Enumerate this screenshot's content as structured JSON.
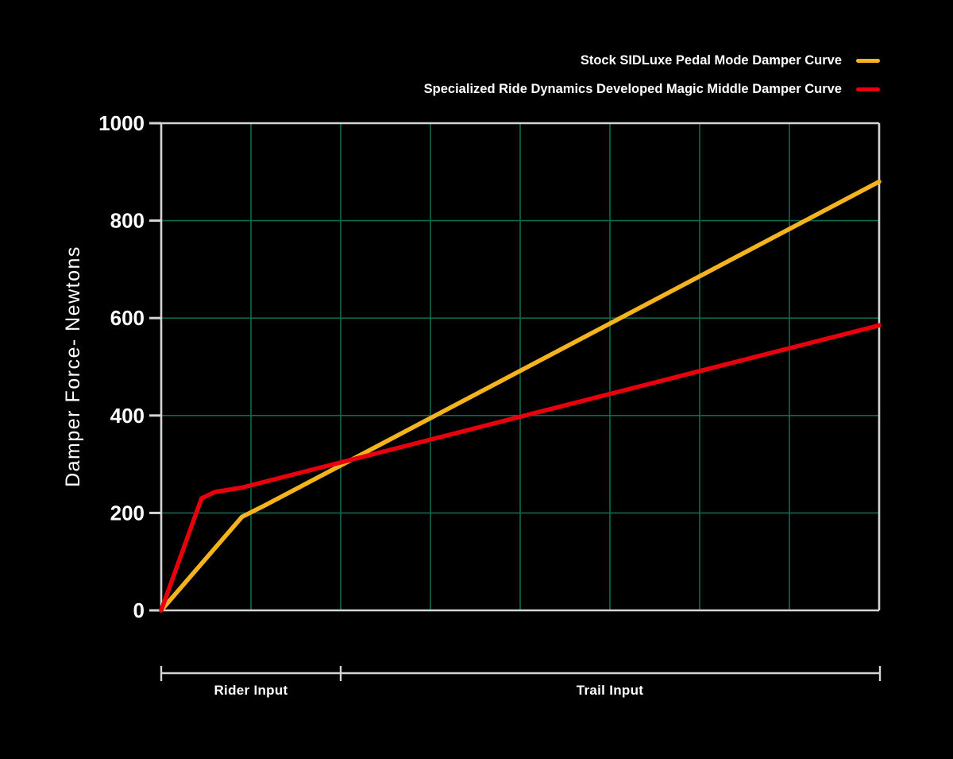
{
  "colors": {
    "background": "#000000",
    "grid": "#10694F",
    "frame": "#D5D5D5",
    "text": "#FFFFFF",
    "stock_curve": "#F5B41E",
    "magic_middle_curve": "#E8000D"
  },
  "legend": {
    "items": [
      {
        "label": "Stock SIDLuxe Pedal Mode Damper Curve",
        "color": "#F5B41E"
      },
      {
        "label": "Specialized Ride Dynamics Developed Magic Middle Damper Curve",
        "color": "#E8000D"
      }
    ]
  },
  "chart_data": {
    "type": "line",
    "title": "",
    "xlabel": "",
    "ylabel": "Damper Force- Newtons",
    "ylim": [
      0,
      1000
    ],
    "xlim": [
      0,
      8
    ],
    "y_ticks": [
      0,
      200,
      400,
      600,
      800,
      1000
    ],
    "x_gridline_positions": [
      1,
      2,
      3,
      4,
      5,
      6,
      7
    ],
    "grid": true,
    "legend_position": "top-right",
    "series": [
      {
        "name": "Stock SIDLuxe Pedal Mode Damper Curve",
        "color": "#F5B41E",
        "points": [
          [
            0,
            0
          ],
          [
            0.9,
            192
          ],
          [
            1.15,
            215
          ],
          [
            8,
            880
          ]
        ]
      },
      {
        "name": "Specialized Ride Dynamics Developed Magic Middle Damper Curve",
        "color": "#E8000D",
        "points": [
          [
            0,
            0
          ],
          [
            0.45,
            230
          ],
          [
            0.6,
            243
          ],
          [
            0.9,
            252
          ],
          [
            8,
            585
          ]
        ]
      }
    ],
    "x_regions": [
      {
        "label": "Rider Input",
        "from": 0,
        "to": 2
      },
      {
        "label": "Trail Input",
        "from": 2,
        "to": 8
      }
    ]
  }
}
